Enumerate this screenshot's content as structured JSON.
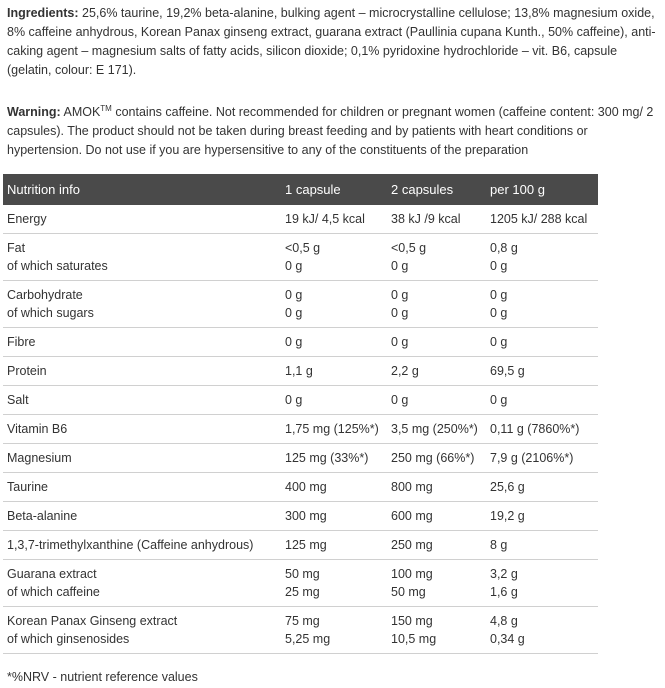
{
  "ingredients": {
    "label": "Ingredients:",
    "text": " 25,6% taurine, 19,2% beta-alanine, bulking agent – microcrystalline cellulose; 13,8% magnesium oxide, 8% caffeine anhydrous, Korean Panax ginseng extract, guarana extract (Paullinia cupana Kunth., 50% caffeine), anti-caking agent – magnesium salts of fatty acids, silicon dioxide; 0,1% pyridoxine hydrochloride – vit. B6, capsule (gelatin, colour: E 171)."
  },
  "warning": {
    "label": "Warning:",
    "brand": " AMOK",
    "tm": "TM",
    "text": " contains caffeine. Not recommended for children or pregnant women (caffeine content: 300 mg/ 2 capsules). The product should not be taken during breast feeding and by patients with heart conditions or hypertension. Do not use if you are hypersensitive to any of the constituents of the preparation"
  },
  "table": {
    "headers": [
      "Nutrition info",
      "1 capsule",
      "2 capsules",
      "per 100 g"
    ],
    "rows": [
      [
        [
          "Energy"
        ],
        [
          "19 kJ/ 4,5 kcal"
        ],
        [
          "38 kJ /9 kcal"
        ],
        [
          "1205 kJ/  288 kcal"
        ]
      ],
      [
        [
          "Fat",
          "of which saturates"
        ],
        [
          "<0,5 g",
          "0 g"
        ],
        [
          "<0,5 g",
          "0 g"
        ],
        [
          "0,8 g",
          "0 g"
        ]
      ],
      [
        [
          "Carbohydrate",
          "of which sugars"
        ],
        [
          "0 g",
          "0 g"
        ],
        [
          "0 g",
          "0 g"
        ],
        [
          "0 g",
          "0 g"
        ]
      ],
      [
        [
          "Fibre"
        ],
        [
          "0 g"
        ],
        [
          "0 g"
        ],
        [
          "0 g"
        ]
      ],
      [
        [
          "Protein"
        ],
        [
          "1,1 g"
        ],
        [
          "2,2 g"
        ],
        [
          "69,5 g"
        ]
      ],
      [
        [
          "Salt"
        ],
        [
          "0 g"
        ],
        [
          "0 g"
        ],
        [
          "0 g"
        ]
      ],
      [
        [
          "Vitamin B6"
        ],
        [
          "1,75 mg (125%*)"
        ],
        [
          "3,5 mg (250%*)"
        ],
        [
          "0,11 g (7860%*)"
        ]
      ],
      [
        [
          "Magnesium"
        ],
        [
          "125 mg (33%*)"
        ],
        [
          "250 mg  (66%*)"
        ],
        [
          "7,9 g (2106%*)"
        ]
      ],
      [
        [
          "Taurine"
        ],
        [
          "400 mg"
        ],
        [
          "800 mg"
        ],
        [
          "25,6 g"
        ]
      ],
      [
        [
          "Beta-alanine"
        ],
        [
          "300 mg"
        ],
        [
          "600 mg"
        ],
        [
          "19,2 g"
        ]
      ],
      [
        [
          "1,3,7-trimethylxanthine (Caffeine anhydrous)"
        ],
        [
          "125 mg"
        ],
        [
          "250 mg"
        ],
        [
          "8 g"
        ]
      ],
      [
        [
          "Guarana extract",
          "of which caffeine"
        ],
        [
          "50 mg",
          "25 mg"
        ],
        [
          "100 mg",
          "50 mg"
        ],
        [
          "3,2 g",
          "1,6 g"
        ]
      ],
      [
        [
          "Korean Panax Ginseng extract",
          "of which ginsenosides"
        ],
        [
          "75 mg",
          "5,25 mg"
        ],
        [
          "150 mg",
          "10,5 mg"
        ],
        [
          "4,8 g",
          "0,34 g"
        ]
      ]
    ]
  },
  "footnote": "*%NRV - nutrient reference values",
  "colors": {
    "header_bg": "#4a4a4a",
    "header_text": "#ffffff",
    "text": "#333333",
    "row_border": "#d0d0d0"
  }
}
